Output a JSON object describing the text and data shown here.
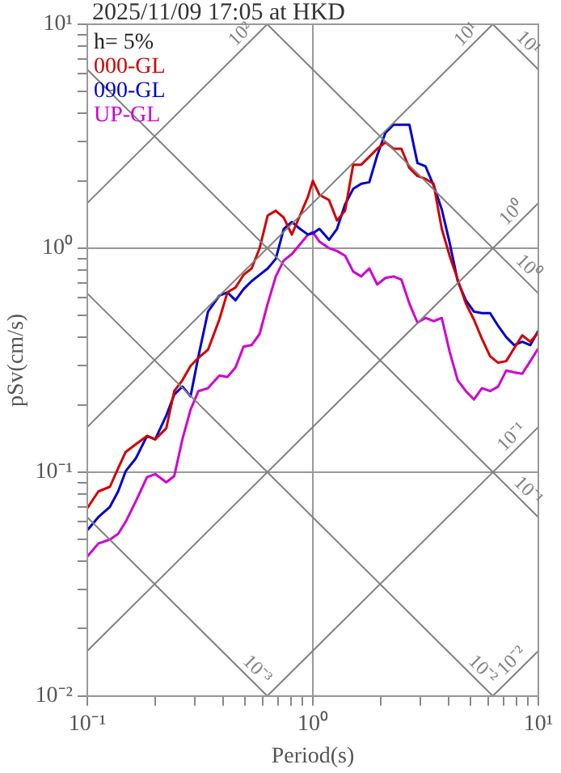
{
  "chart_data": {
    "type": "line",
    "title": "2025/11/09 17:05 at HKD",
    "xlabel": "Period(s)",
    "ylabel": "pSv(cm/s)",
    "log": "xy",
    "grid": true,
    "legend": "top left",
    "annotations": [
      "h= 5%"
    ],
    "xlim": [
      0.1,
      10
    ],
    "ylim": [
      0.01,
      10
    ],
    "xticks": [
      {
        "value": 0.1,
        "label": "10⁻¹"
      },
      {
        "value": 0.2,
        "label": null
      },
      {
        "value": 0.3,
        "label": null
      },
      {
        "value": 0.4,
        "label": null
      },
      {
        "value": 0.5,
        "label": null
      },
      {
        "value": 0.6,
        "label": null
      },
      {
        "value": 0.7,
        "label": null
      },
      {
        "value": 0.8,
        "label": null
      },
      {
        "value": 0.9,
        "label": null
      },
      {
        "value": 1,
        "label": "10⁰"
      },
      {
        "value": 2,
        "label": null
      },
      {
        "value": 3,
        "label": null
      },
      {
        "value": 4,
        "label": null
      },
      {
        "value": 5,
        "label": null
      },
      {
        "value": 6,
        "label": null
      },
      {
        "value": 7,
        "label": null
      },
      {
        "value": 8,
        "label": null
      },
      {
        "value": 9,
        "label": null
      },
      {
        "value": 10,
        "label": "10¹"
      }
    ],
    "yticks": [
      {
        "value": 0.01,
        "label": "10⁻²"
      },
      {
        "value": 0.02,
        "label": null
      },
      {
        "value": 0.03,
        "label": null
      },
      {
        "value": 0.04,
        "label": null
      },
      {
        "value": 0.05,
        "label": null
      },
      {
        "value": 0.06,
        "label": null
      },
      {
        "value": 0.07,
        "label": null
      },
      {
        "value": 0.08,
        "label": null
      },
      {
        "value": 0.09,
        "label": null
      },
      {
        "value": 0.1,
        "label": "10⁻¹"
      },
      {
        "value": 0.2,
        "label": null
      },
      {
        "value": 0.3,
        "label": null
      },
      {
        "value": 0.4,
        "label": null
      },
      {
        "value": 0.5,
        "label": null
      },
      {
        "value": 0.6,
        "label": null
      },
      {
        "value": 0.7,
        "label": null
      },
      {
        "value": 0.8,
        "label": null
      },
      {
        "value": 0.9,
        "label": null
      },
      {
        "value": 1,
        "label": "10⁰"
      },
      {
        "value": 2,
        "label": null
      },
      {
        "value": 3,
        "label": null
      },
      {
        "value": 4,
        "label": null
      },
      {
        "value": 5,
        "label": null
      },
      {
        "value": 6,
        "label": null
      },
      {
        "value": 7,
        "label": null
      },
      {
        "value": 8,
        "label": null
      },
      {
        "value": 9,
        "label": null
      },
      {
        "value": 10,
        "label": "10¹"
      }
    ],
    "x": [
      0.1,
      0.112,
      0.126,
      0.137,
      0.148,
      0.164,
      0.184,
      0.2,
      0.224,
      0.243,
      0.264,
      0.287,
      0.311,
      0.343,
      0.385,
      0.418,
      0.454,
      0.493,
      0.535,
      0.581,
      0.631,
      0.685,
      0.743,
      0.807,
      0.877,
      0.952,
      1,
      1.07,
      1.18,
      1.28,
      1.39,
      1.51,
      1.64,
      1.78,
      1.93,
      2.1,
      2.28,
      2.47,
      2.68,
      2.91,
      3.16,
      3.43,
      3.73,
      4.04,
      4.39,
      4.77,
      5.18,
      5.62,
      6.11,
      6.63,
      7.2,
      7.81,
      8.48,
      9.21,
      10
    ],
    "series": [
      {
        "name": "10²",
        "color": "#808080",
        "x": [
          0.1,
          0.628
        ],
        "values": [
          1.59,
          10
        ]
      },
      {
        "name": "10¹",
        "color": "#808080",
        "x": [
          0.1,
          6.28
        ],
        "values": [
          0.159,
          10
        ]
      },
      {
        "name": "10⁰",
        "color": "#808080",
        "x": [
          0.1,
          10
        ],
        "values": [
          0.0159,
          1.59
        ]
      },
      {
        "name": "10⁻¹",
        "color": "#808080",
        "x": [
          0.628,
          10
        ],
        "values": [
          0.01,
          0.159
        ]
      },
      {
        "name": "10⁻²",
        "color": "#808080",
        "x": [
          6.28,
          10
        ],
        "values": [
          0.01,
          0.0159
        ]
      },
      {
        "name": "10¹",
        "color": "#808080",
        "x": [
          6.28,
          10
        ],
        "values": [
          10,
          6.28
        ]
      },
      {
        "name": "10⁰",
        "color": "#808080",
        "x": [
          0.628,
          10
        ],
        "values": [
          10,
          0.628
        ]
      },
      {
        "name": "10⁻¹",
        "color": "#808080",
        "x": [
          0.1,
          10
        ],
        "values": [
          6.28,
          0.0628
        ]
      },
      {
        "name": "10⁻²",
        "color": "#808080",
        "x": [
          0.1,
          6.28
        ],
        "values": [
          0.628,
          0.01
        ]
      },
      {
        "name": "10⁻³",
        "color": "#808080",
        "x": [
          0.1,
          0.628
        ],
        "values": [
          0.0628,
          0.01
        ]
      },
      {
        "name": "000-GL",
        "color": "#d00000",
        "values": [
          0.069,
          0.082,
          0.086,
          0.104,
          0.123,
          0.133,
          0.145,
          0.14,
          0.157,
          0.23,
          0.257,
          0.298,
          0.324,
          0.352,
          0.48,
          0.635,
          0.667,
          0.76,
          0.812,
          1.0,
          1.4,
          1.47,
          1.37,
          1.15,
          1.4,
          1.7,
          2.0,
          1.73,
          1.64,
          1.33,
          1.47,
          2.36,
          2.36,
          2.56,
          2.78,
          2.97,
          2.78,
          2.78,
          2.28,
          2.1,
          2.04,
          1.94,
          1.22,
          0.926,
          0.724,
          0.566,
          0.48,
          0.394,
          0.329,
          0.308,
          0.313,
          0.357,
          0.408,
          0.382,
          0.421
        ]
      },
      {
        "name": "090-GL",
        "color": "#0000d0",
        "values": [
          0.055,
          0.063,
          0.07,
          0.082,
          0.101,
          0.115,
          0.145,
          0.14,
          0.179,
          0.222,
          0.241,
          0.218,
          0.329,
          0.521,
          0.614,
          0.635,
          0.585,
          0.656,
          0.712,
          0.76,
          0.812,
          0.896,
          1.22,
          1.31,
          1.22,
          1.15,
          1.165,
          1.22,
          1.09,
          1.22,
          1.57,
          1.84,
          1.94,
          1.97,
          2.6,
          3.28,
          3.56,
          3.56,
          3.56,
          2.4,
          2.32,
          1.91,
          1.49,
          1.06,
          0.712,
          0.585,
          0.521,
          0.513,
          0.513,
          0.45,
          0.401,
          0.369,
          0.382,
          0.369,
          0.428
        ]
      },
      {
        "name": "UP-GL",
        "color": "#d000d0",
        "values": [
          0.042,
          0.048,
          0.05,
          0.053,
          0.06,
          0.074,
          0.095,
          0.098,
          0.09,
          0.096,
          0.14,
          0.19,
          0.23,
          0.237,
          0.27,
          0.266,
          0.293,
          0.363,
          0.369,
          0.414,
          0.566,
          0.748,
          0.881,
          0.941,
          1.04,
          1.15,
          1.18,
          1.07,
          1.0,
          0.972,
          0.926,
          0.786,
          0.748,
          0.812,
          0.689,
          0.736,
          0.748,
          0.724,
          0.566,
          0.465,
          0.488,
          0.472,
          0.488,
          0.346,
          0.257,
          0.23,
          0.211,
          0.237,
          0.23,
          0.241,
          0.284,
          0.279,
          0.275,
          0.313,
          0.357
        ]
      }
    ]
  }
}
